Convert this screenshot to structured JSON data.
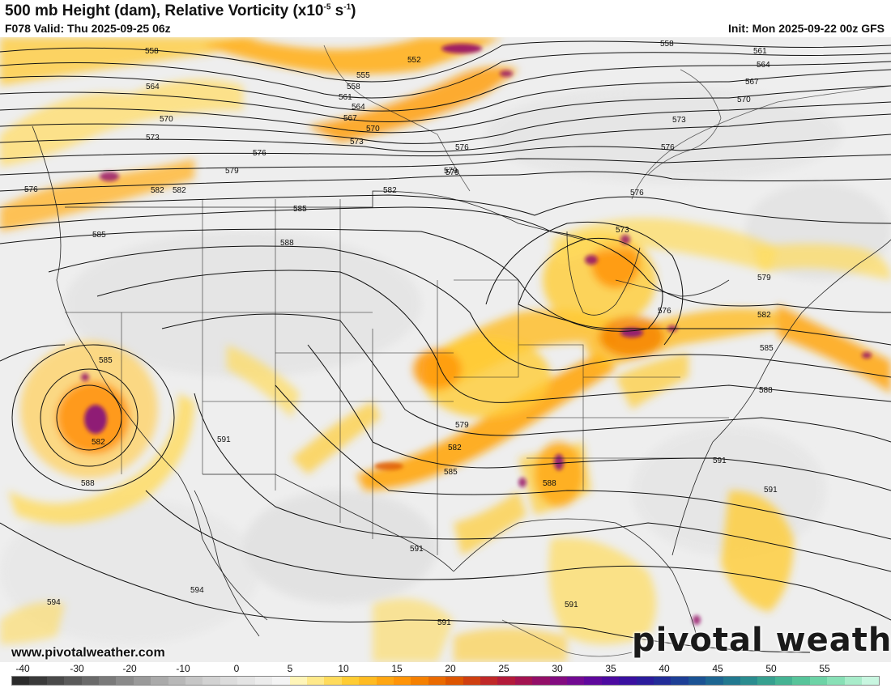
{
  "title": "500 mb Height (dam), Relative Vorticity (x10",
  "title_exp": "-5",
  "title_unit_mid": " s",
  "title_exp2": "-1",
  "title_end": ")",
  "valid": "F078 Valid: Thu 2025-09-25 06z",
  "init": "Init: Mon 2025-09-22 00z GFS",
  "website": "www.pivotalweather.com",
  "logo": "pivotal weather",
  "colorbar": {
    "ticks": [
      "-40",
      "-30",
      "-20",
      "-10",
      "0",
      "5",
      "10",
      "15",
      "20",
      "25",
      "30",
      "35",
      "40",
      "45",
      "50",
      "55"
    ],
    "colors": [
      "#2b2b2b",
      "#3a3a3a",
      "#4a4a4a",
      "#5a5a5a",
      "#6a6a6a",
      "#7a7a7a",
      "#8a8a8a",
      "#9a9a9a",
      "#aaaaaa",
      "#b8b8b8",
      "#c6c6c6",
      "#d2d2d2",
      "#dcdcdc",
      "#e4e4e4",
      "#ececec",
      "#f4f4f4",
      "#fff5b8",
      "#ffe98a",
      "#ffdb5c",
      "#ffcc33",
      "#ffbb22",
      "#ffa612",
      "#ff9408",
      "#f58000",
      "#ea6a00",
      "#dd5500",
      "#cf3f10",
      "#c02828",
      "#b31a3a",
      "#a31350",
      "#930f68",
      "#830c80",
      "#720a92",
      "#5f089c",
      "#4c0aa0",
      "#3a10a0",
      "#2b1c9c",
      "#222c98",
      "#1d3f96",
      "#1b5394",
      "#1d6692",
      "#227990",
      "#2a8c8f",
      "#36a08f",
      "#45b393",
      "#57c49a",
      "#6dd3a6",
      "#88e0b6",
      "#a8ecca",
      "#c8f6e0"
    ]
  },
  "height_labels": [
    "558",
    "552",
    "555",
    "558",
    "561",
    "564",
    "567",
    "570",
    "573",
    "576",
    "579",
    "582",
    "585",
    "588",
    "591",
    "594",
    "561",
    "564",
    "567",
    "570",
    "573",
    "576",
    "576",
    "573",
    "579",
    "582",
    "585",
    "588",
    "591",
    "591",
    "591",
    "591",
    "591",
    "594",
    "582",
    "585",
    "588",
    "579",
    "582",
    "585",
    "588",
    "576",
    "576",
    "579",
    "582",
    "585",
    "558",
    "564",
    "570",
    "573",
    "576",
    "579",
    "582"
  ],
  "colors": {
    "contour": "#111111",
    "border": "#222222",
    "background": "#f0f0f0"
  }
}
